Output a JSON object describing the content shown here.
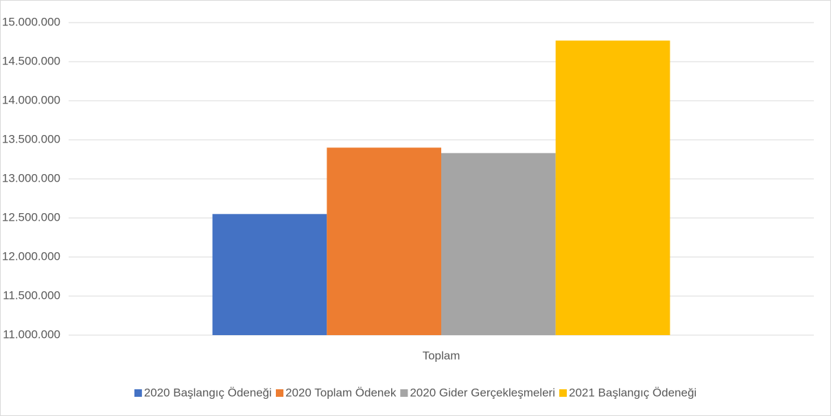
{
  "chart_data": {
    "type": "bar",
    "categories": [
      "Toplam"
    ],
    "series": [
      {
        "name": "2020 Başlangıç Ödeneği",
        "color": "#4472c4",
        "values": [
          12550000
        ]
      },
      {
        "name": "2020 Toplam Ödenek",
        "color": "#ed7d31",
        "values": [
          13400000
        ]
      },
      {
        "name": "2020 Gider Gerçekleşmeleri",
        "color": "#a5a5a5",
        "values": [
          13330000
        ]
      },
      {
        "name": "2021 Başlangıç Ödeneği",
        "color": "#ffc000",
        "values": [
          14770000
        ]
      }
    ],
    "ylim": [
      11000000,
      15000000
    ],
    "yticks": [
      {
        "value": 11000000,
        "label": "11.000.000"
      },
      {
        "value": 11500000,
        "label": "11.500.000"
      },
      {
        "value": 12000000,
        "label": "12.000.000"
      },
      {
        "value": 12500000,
        "label": "12.500.000"
      },
      {
        "value": 13000000,
        "label": "13.000.000"
      },
      {
        "value": 13500000,
        "label": "13.500.000"
      },
      {
        "value": 14000000,
        "label": "14.000.000"
      },
      {
        "value": 14500000,
        "label": "14.500.000"
      },
      {
        "value": 15000000,
        "label": "15.000.000"
      }
    ],
    "grid": true,
    "legend": "bottom"
  }
}
